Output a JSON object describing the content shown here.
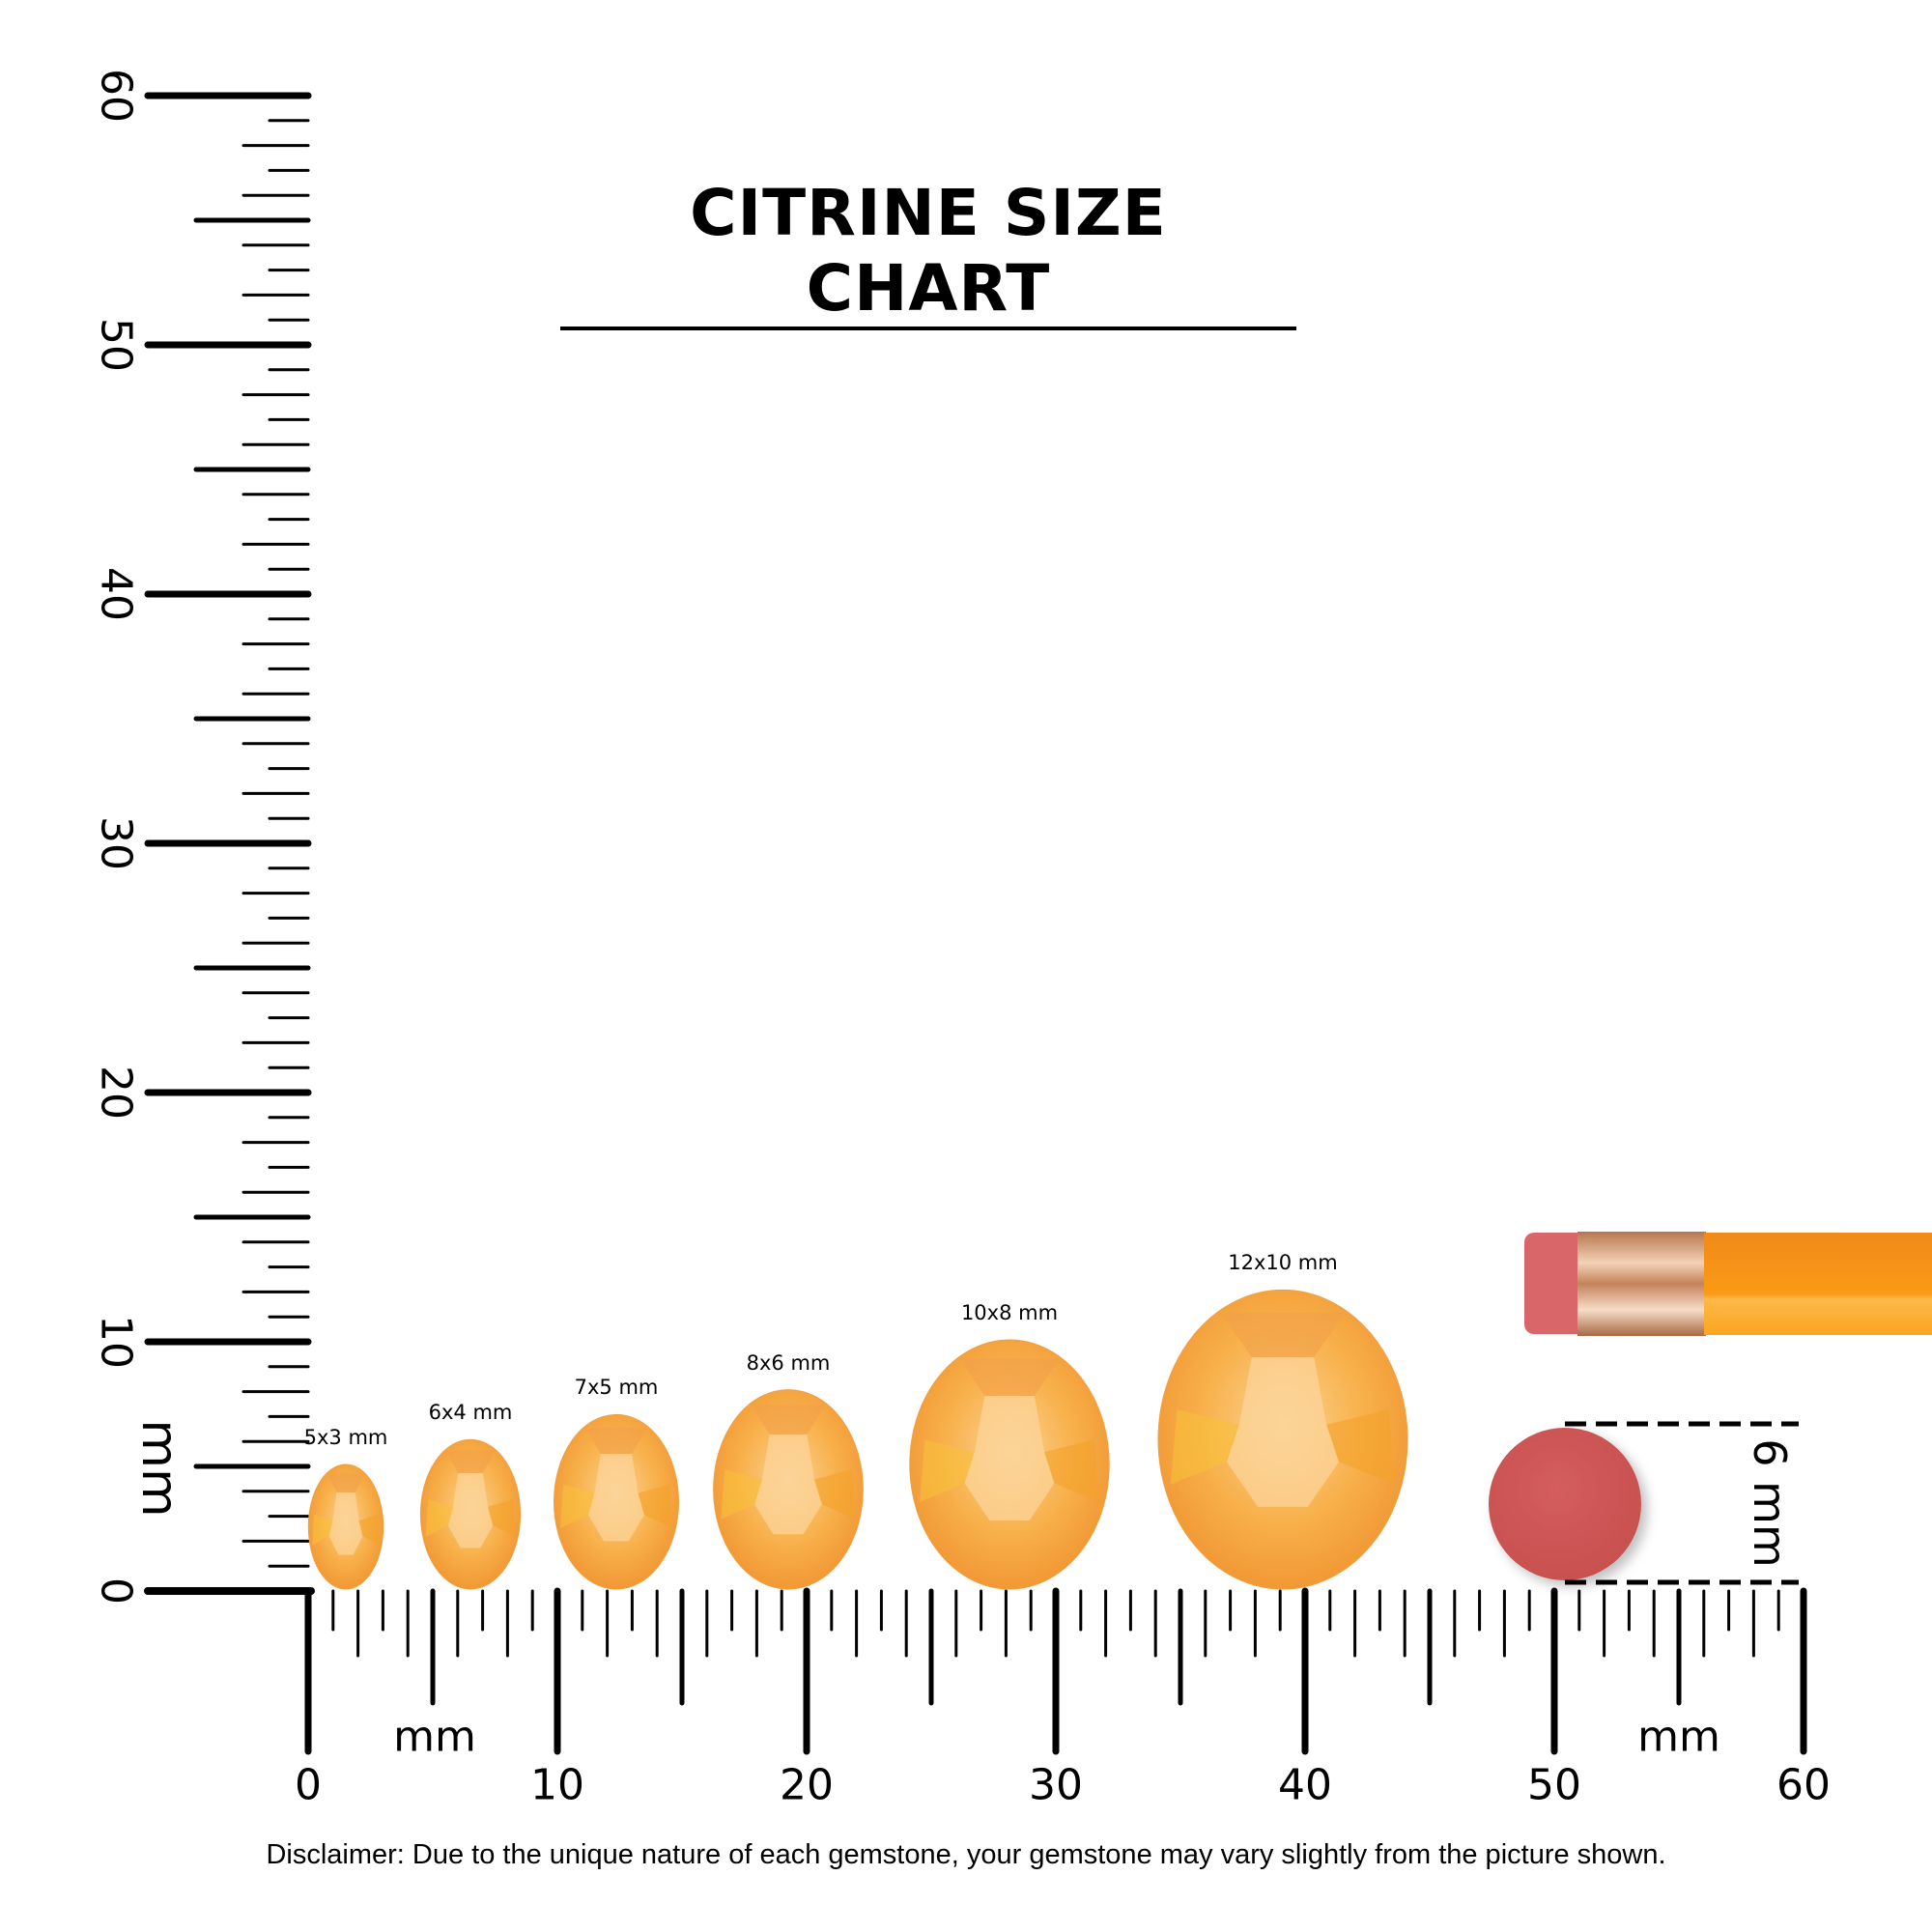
{
  "title": "CITRINE SIZE CHART",
  "ruler": {
    "unit": "mm",
    "range_mm": [
      0,
      60
    ],
    "labels": [
      "0",
      "10",
      "20",
      "30",
      "40",
      "50",
      "60"
    ]
  },
  "gems": [
    {
      "label": "5x3 mm",
      "length_mm": 5,
      "width_mm": 3
    },
    {
      "label": "6x4 mm",
      "length_mm": 6,
      "width_mm": 4
    },
    {
      "label": "7x5 mm",
      "length_mm": 7,
      "width_mm": 5
    },
    {
      "label": "8x6 mm",
      "length_mm": 8,
      "width_mm": 6
    },
    {
      "label": "10x8 mm",
      "length_mm": 10,
      "width_mm": 8
    },
    {
      "label": "12x10 mm",
      "length_mm": 12,
      "width_mm": 10
    }
  ],
  "reference": {
    "label": "6 mm",
    "diameter_mm": 6,
    "eraser_color": "#d2585a"
  },
  "colors": {
    "gem": "#f7a83a",
    "gem_light": "#fbd08a",
    "pencil": "#fb9514",
    "ferrule": "#d9a07a"
  },
  "disclaimer": "Disclaimer: Due to the unique nature of each gemstone, your gemstone may vary slightly from the picture shown."
}
